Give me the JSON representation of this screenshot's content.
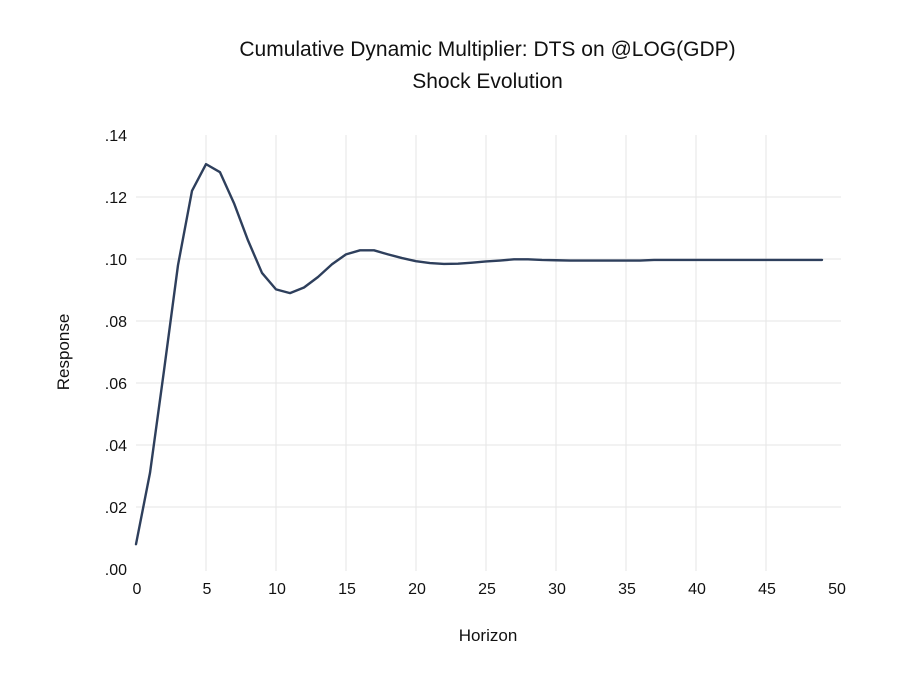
{
  "chart_data": {
    "type": "line",
    "title": "Cumulative Dynamic Multiplier: DTS on @LOG(GDP)",
    "subtitle": "Shock Evolution",
    "xlabel": "Horizon",
    "ylabel": "Response",
    "xlim": [
      0,
      50
    ],
    "ylim": [
      0,
      0.14
    ],
    "grid": true,
    "x_ticks": [
      0,
      5,
      10,
      15,
      20,
      25,
      30,
      35,
      40,
      45,
      50
    ],
    "x_tick_labels": [
      "0",
      "5",
      "10",
      "15",
      "20",
      "25",
      "30",
      "35",
      "40",
      "45",
      "50"
    ],
    "y_ticks": [
      0,
      0.02,
      0.04,
      0.06,
      0.08,
      0.1,
      0.12,
      0.14
    ],
    "y_tick_labels": [
      ".00",
      ".02",
      ".04",
      ".06",
      ".08",
      ".10",
      ".12",
      ".14"
    ],
    "series": [
      {
        "name": "Response",
        "color": "#2e3f5c",
        "x": [
          0,
          1,
          2,
          3,
          4,
          5,
          6,
          7,
          8,
          9,
          10,
          11,
          12,
          13,
          14,
          15,
          16,
          17,
          18,
          19,
          20,
          21,
          22,
          23,
          24,
          25,
          26,
          27,
          28,
          29,
          30,
          31,
          32,
          33,
          34,
          35,
          36,
          37,
          38,
          39,
          40,
          41,
          42,
          43,
          44,
          45,
          46,
          47,
          48,
          49
        ],
        "values": [
          0.008,
          0.031,
          0.064,
          0.098,
          0.122,
          0.1306,
          0.128,
          0.118,
          0.106,
          0.0955,
          0.0902,
          0.089,
          0.0908,
          0.0942,
          0.0983,
          0.1015,
          0.1028,
          0.1028,
          0.1015,
          0.1003,
          0.0993,
          0.0987,
          0.0984,
          0.0985,
          0.0988,
          0.0992,
          0.0995,
          0.0999,
          0.0999,
          0.0997,
          0.0996,
          0.0995,
          0.0995,
          0.0995,
          0.0995,
          0.0995,
          0.0995,
          0.0997,
          0.0997,
          0.0997,
          0.0997,
          0.0997,
          0.0997,
          0.0997,
          0.0997,
          0.0997,
          0.0997,
          0.0997,
          0.0997,
          0.0997
        ]
      }
    ]
  }
}
